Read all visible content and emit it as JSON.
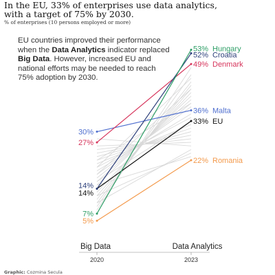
{
  "header": {
    "title": "In the EU, 33% of enterprises use data analytics, with a target of 75% by 2030.",
    "subtitle": "% of enterprises (10 persons employed or more)"
  },
  "annotation": {
    "p1": "EU countries improved their performance when the ",
    "b1": "Data Analytics",
    "p2": " indicator replaced ",
    "b2": "Big Data",
    "p3": ". However, increased EU and national efforts may be needed to reach 75% adoption by 2030."
  },
  "credit": {
    "label": "Graphic:",
    "author": "Cozmina Secula"
  },
  "colors": {
    "Hungary": "#2e9e66",
    "Croatia": "#2c3f7a",
    "Denmark": "#d6345b",
    "Malta": "#4f6fcf",
    "EU": "#111111",
    "Romania": "#f39a4c",
    "background": "#d9d9d9"
  },
  "chart_data": {
    "type": "line",
    "categories": [
      "2020",
      "2023"
    ],
    "category_titles": [
      "Big Data",
      "Data Analytics"
    ],
    "ylim": [
      0,
      55
    ],
    "grid": false,
    "highlighted": [
      {
        "name": "Hungary",
        "values": [
          7,
          53
        ],
        "label_start": "7%",
        "label_end": "53%",
        "show_end_name": true
      },
      {
        "name": "Croatia",
        "values": [
          14,
          52
        ],
        "label_start": "14%",
        "label_end": "52%",
        "show_end_name": true
      },
      {
        "name": "Denmark",
        "values": [
          27,
          49
        ],
        "label_start": "27%",
        "label_end": "49%",
        "show_end_name": true
      },
      {
        "name": "Malta",
        "values": [
          30,
          36
        ],
        "label_start": "30%",
        "label_end": "36%",
        "show_end_name": true
      },
      {
        "name": "EU",
        "values": [
          14,
          33
        ],
        "label_start": "14%",
        "label_end": "33%",
        "show_end_name": true
      },
      {
        "name": "Romania",
        "values": [
          5,
          22
        ],
        "label_start": "5%",
        "label_end": "22%",
        "show_end_name": true
      }
    ],
    "background_series": [
      [
        8,
        48
      ],
      [
        9,
        46
      ],
      [
        10,
        44
      ],
      [
        11,
        43
      ],
      [
        12,
        42
      ],
      [
        13,
        41
      ],
      [
        15,
        40
      ],
      [
        16,
        39
      ],
      [
        17,
        38
      ],
      [
        18,
        37
      ],
      [
        19,
        35
      ],
      [
        20,
        34
      ],
      [
        21,
        32
      ],
      [
        22,
        31
      ],
      [
        23,
        30
      ],
      [
        24,
        29
      ],
      [
        25,
        28
      ],
      [
        26,
        27
      ],
      [
        28,
        26
      ],
      [
        10,
        25
      ],
      [
        12,
        24
      ],
      [
        15,
        23
      ],
      [
        18,
        42
      ],
      [
        20,
        45
      ],
      [
        22,
        38
      ],
      [
        16,
        33
      ]
    ]
  }
}
